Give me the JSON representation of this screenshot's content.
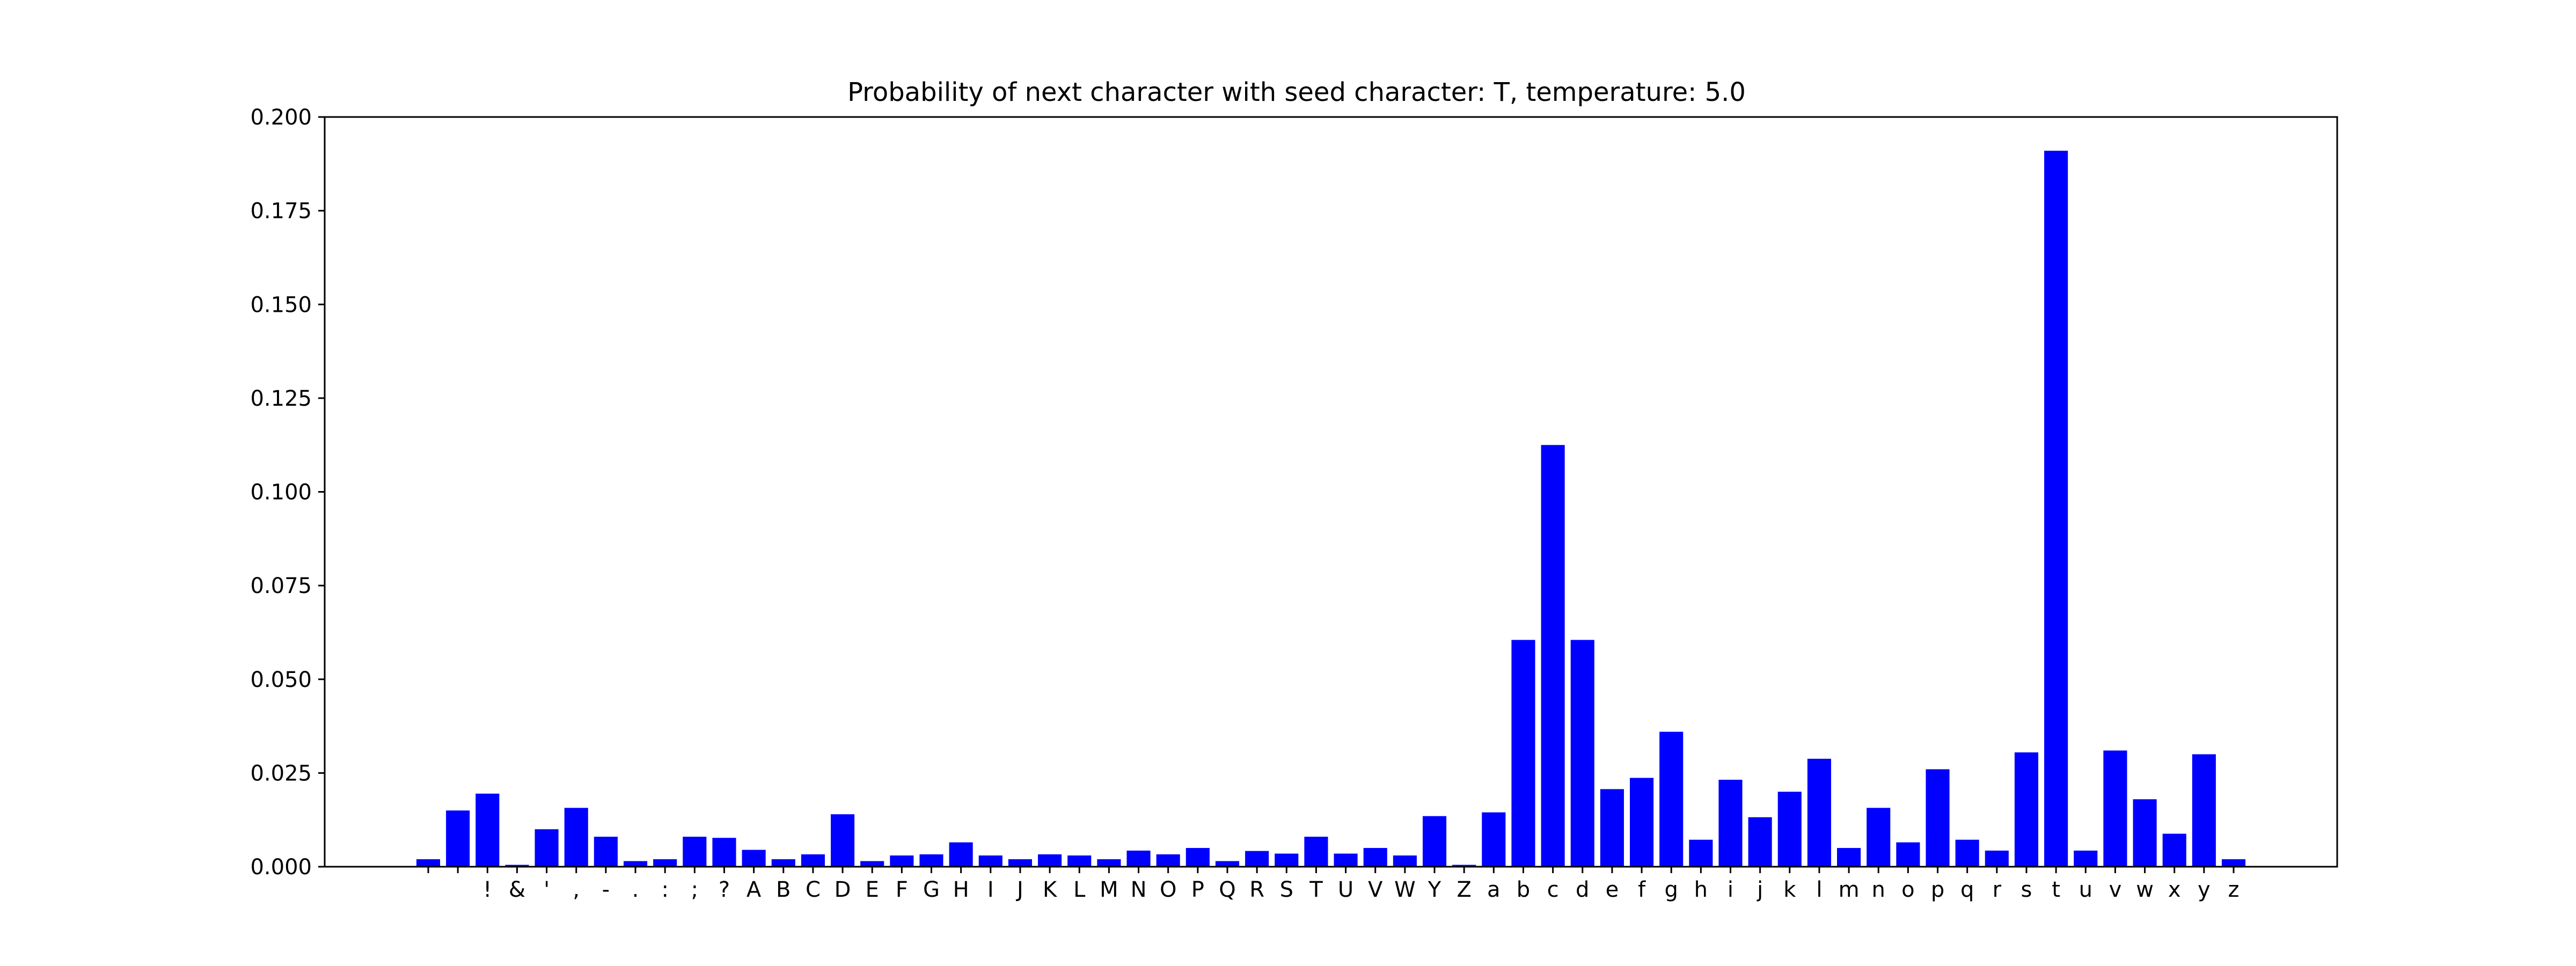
{
  "chart_data": {
    "type": "bar",
    "title": "Probability of next character with seed character: T, temperature: 5.0",
    "xlabel": "",
    "ylabel": "",
    "categories": [
      "\\n",
      " ",
      "!",
      "&",
      "'",
      ",",
      "-",
      ".",
      ":",
      ";",
      "?",
      "A",
      "B",
      "C",
      "D",
      "E",
      "F",
      "G",
      "H",
      "I",
      "J",
      "K",
      "L",
      "M",
      "N",
      "O",
      "P",
      "Q",
      "R",
      "S",
      "T",
      "U",
      "V",
      "W",
      "Y",
      "Z",
      "a",
      "b",
      "c",
      "d",
      "e",
      "f",
      "g",
      "h",
      "i",
      "j",
      "k",
      "l",
      "m",
      "n",
      "o",
      "p",
      "q",
      "r",
      "s",
      "t",
      "u",
      "v",
      "w",
      "x",
      "y",
      "z"
    ],
    "tick_labels": [
      "",
      "",
      "!",
      "&",
      "'",
      ",",
      "-",
      ".",
      ":",
      ";",
      "?",
      "A",
      "B",
      "C",
      "D",
      "E",
      "F",
      "G",
      "H",
      "I",
      "J",
      "K",
      "L",
      "M",
      "N",
      "O",
      "P",
      "Q",
      "R",
      "S",
      "T",
      "U",
      "V",
      "W",
      "Y",
      "Z",
      "a",
      "b",
      "c",
      "d",
      "e",
      "f",
      "g",
      "h",
      "i",
      "j",
      "k",
      "l",
      "m",
      "n",
      "o",
      "p",
      "q",
      "r",
      "s",
      "t",
      "u",
      "v",
      "w",
      "x",
      "y",
      "z"
    ],
    "values": [
      0.002,
      0.015,
      0.0195,
      0.0005,
      0.01,
      0.0157,
      0.008,
      0.0015,
      0.002,
      0.008,
      0.0077,
      0.0045,
      0.002,
      0.0033,
      0.014,
      0.0015,
      0.003,
      0.0033,
      0.0065,
      0.003,
      0.002,
      0.0033,
      0.003,
      0.002,
      0.0043,
      0.0033,
      0.005,
      0.0015,
      0.0042,
      0.0035,
      0.008,
      0.0035,
      0.005,
      0.003,
      0.0135,
      0.0005,
      0.0145,
      0.0605,
      0.1125,
      0.0605,
      0.0207,
      0.0237,
      0.036,
      0.0072,
      0.0232,
      0.0132,
      0.02,
      0.0288,
      0.005,
      0.0157,
      0.0065,
      0.026,
      0.0072,
      0.0043,
      0.0305,
      0.191,
      0.0043,
      0.031,
      0.018,
      0.0088,
      0.03,
      0.002
    ],
    "yticks": [
      "0.000",
      "0.025",
      "0.050",
      "0.075",
      "0.100",
      "0.125",
      "0.150",
      "0.175",
      "0.200"
    ],
    "ylim": [
      0,
      0.2
    ],
    "bar_color": "#0000ff",
    "grid": false,
    "legend": "none"
  }
}
